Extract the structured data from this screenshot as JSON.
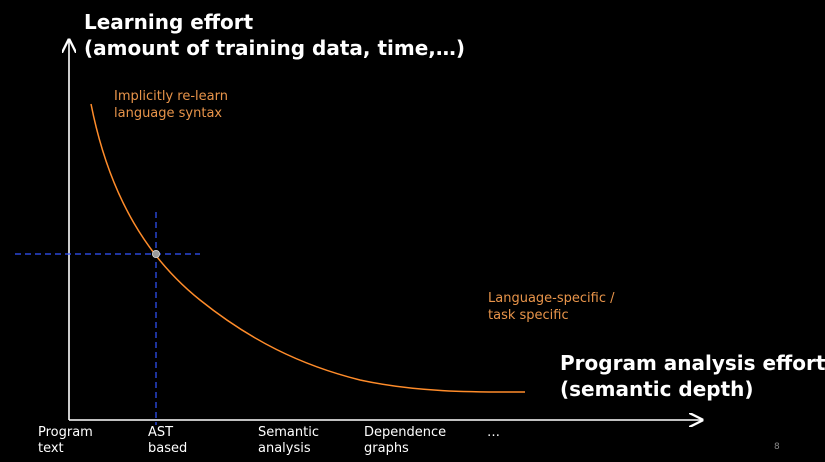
{
  "y_axis_title": [
    "Learning effort",
    "(amount of training data, time,…)"
  ],
  "x_axis_title": [
    "Program analysis effort",
    "(semantic depth)"
  ],
  "annotations": {
    "top": [
      "Implicitly re-learn",
      "language syntax"
    ],
    "bottom": [
      "Language-specific /",
      "task specific"
    ]
  },
  "x_ticks": [
    [
      "Program",
      "text"
    ],
    [
      "AST",
      "based"
    ],
    [
      "Semantic",
      "analysis"
    ],
    [
      "Dependence",
      "graphs"
    ],
    [
      "…",
      ""
    ]
  ],
  "page_number": "8",
  "colors": {
    "background": "#000000",
    "axis": "#ffffff",
    "curve": "#ff8c2a",
    "guide": "#3355ff",
    "marker": "#9a9a9a",
    "annotation": "#e8944a"
  }
}
